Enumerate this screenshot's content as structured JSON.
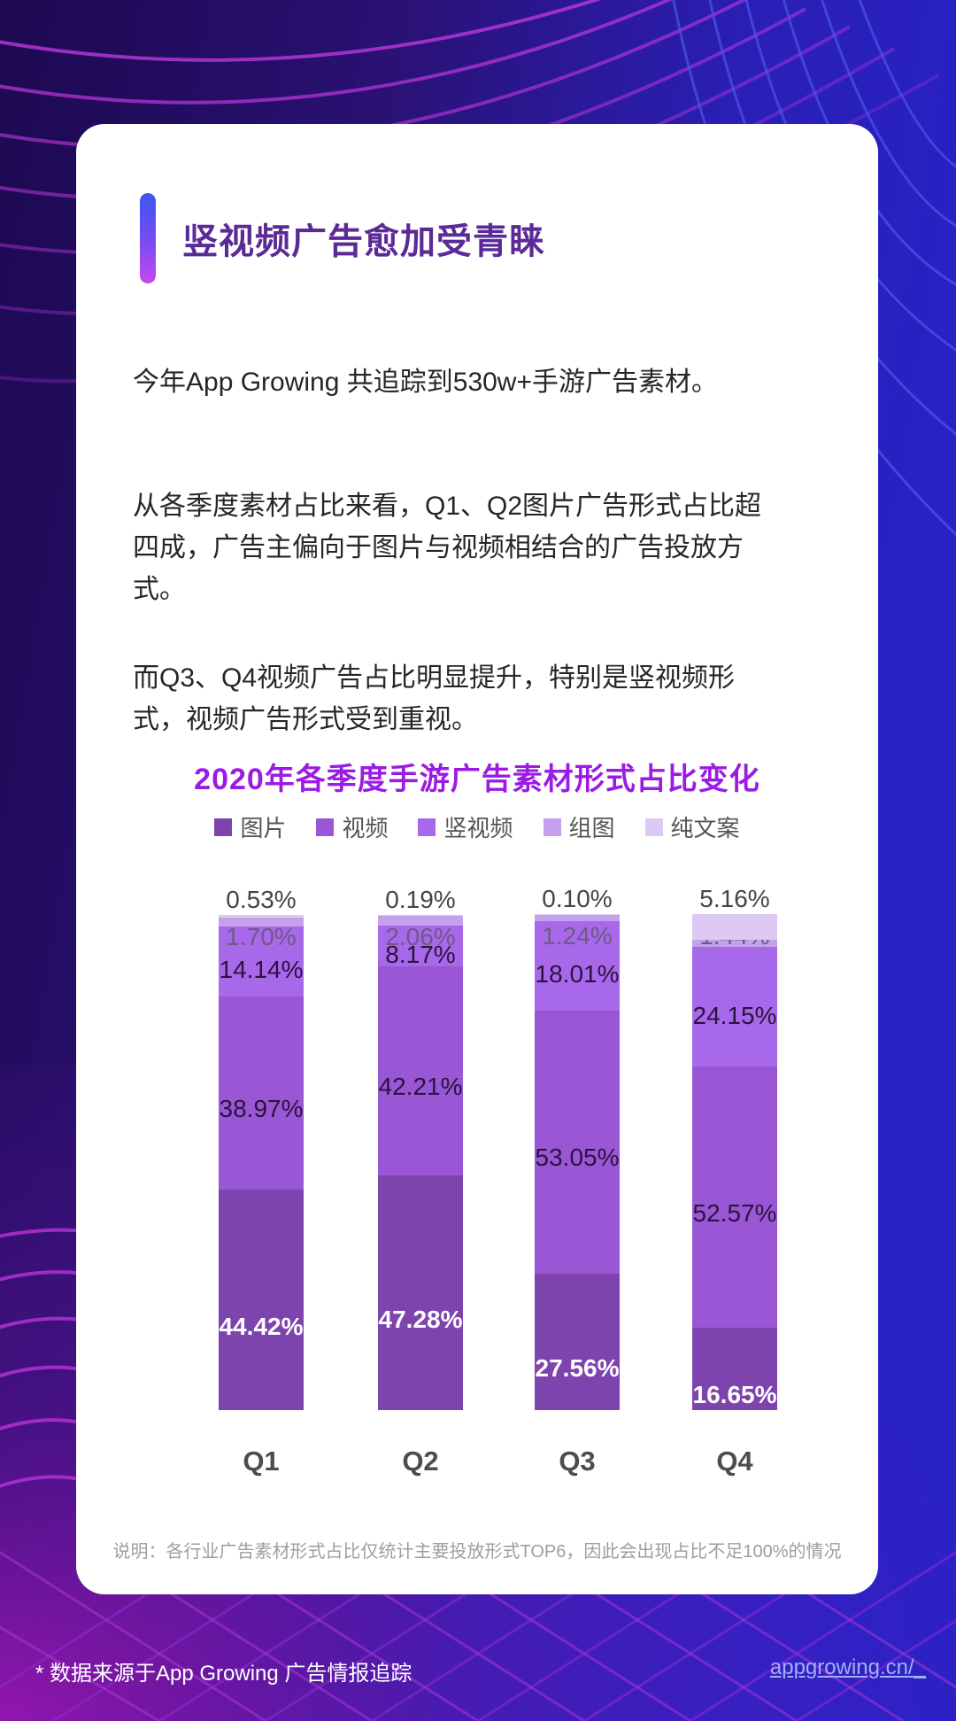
{
  "header": {
    "title": "竖视频广告愈加受青睐"
  },
  "paragraphs": {
    "p1": "今年App Growing 共追踪到530w+手游广告素材。",
    "p2": "从各季度素材占比来看，Q1、Q2图片广告形式占比超四成，广告主偏向于图片与视频相结合的广告投放方式。",
    "p3": "而Q3、Q4视频广告占比明显提升，特别是竖视频形式，视频广告形式受到重视。"
  },
  "chart_data": {
    "type": "bar",
    "stacked": true,
    "title": "2020年各季度手游广告素材形式占比变化",
    "categories": [
      "Q1",
      "Q2",
      "Q3",
      "Q4"
    ],
    "series": [
      {
        "name": "图片",
        "key": "image",
        "color": "#7E44AE",
        "label_color": "#FFFFFF",
        "values": [
          44.42,
          47.28,
          27.56,
          16.65
        ]
      },
      {
        "name": "视频",
        "key": "video",
        "color": "#9957D5",
        "label_color": "#2B1240",
        "values": [
          38.97,
          42.21,
          53.05,
          52.57
        ]
      },
      {
        "name": "竖视频",
        "key": "vertical-video",
        "color": "#A768E9",
        "label_color": "#2B1240",
        "values": [
          14.14,
          8.17,
          18.01,
          24.15
        ]
      },
      {
        "name": "组图",
        "key": "image-group",
        "color": "#C5A1ED",
        "label_color": "#6E5A85",
        "values": [
          1.7,
          2.06,
          1.24,
          1.44
        ]
      },
      {
        "name": "纯文案",
        "key": "text-only",
        "color": "#DDC9F4",
        "label_color": "#454545",
        "values": [
          0.53,
          0.19,
          0.1,
          5.16
        ]
      }
    ],
    "value_suffix": "%",
    "ylim": [
      0,
      100
    ],
    "grid": false,
    "legend_position": "top",
    "note": "说明：各行业广告素材形式占比仅统计主要投放形式TOP6，因此会出现占比不足100%的情况"
  },
  "footer": {
    "source": "* 数据来源于App Growing 广告情报追踪",
    "link": "appgrowing.cn/_"
  },
  "colors": {
    "card_background": "#FFFFFF",
    "main_title": "#5B2A96",
    "chart_title": "#9B1BE5",
    "accent_bar_top": "#3D55F3",
    "accent_bar_bottom": "#C44AEF",
    "background_indigo": "#241066",
    "background_blue": "#2B22C6",
    "link": "#9FB0F5"
  }
}
